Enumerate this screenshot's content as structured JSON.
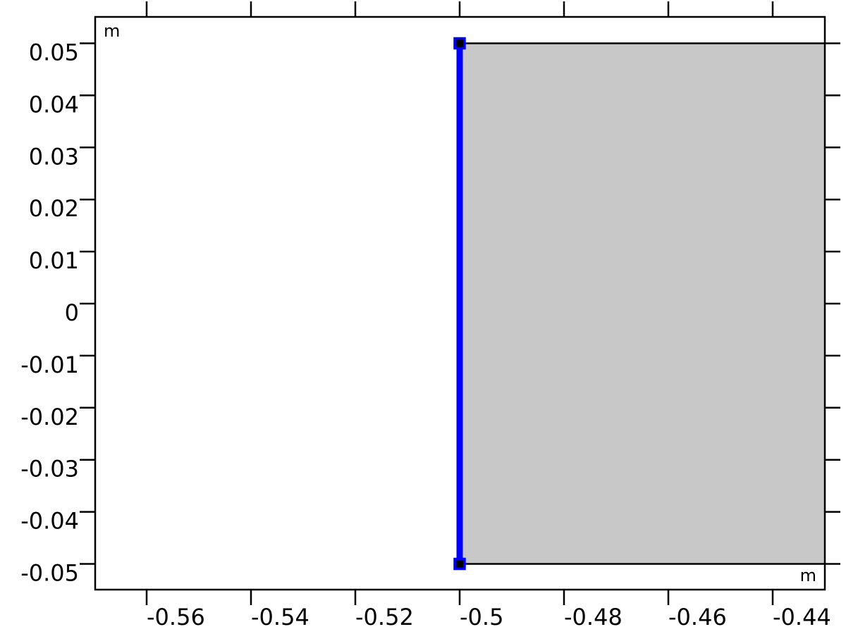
{
  "chart_data": {
    "type": "geometry",
    "x_unit": "m",
    "y_unit": "m",
    "xlim": [
      -0.57,
      -0.43
    ],
    "ylim": [
      -0.055,
      0.055
    ],
    "x_ticks": [
      {
        "value": -0.56,
        "label": "-0.56"
      },
      {
        "value": -0.54,
        "label": "-0.54"
      },
      {
        "value": -0.52,
        "label": "-0.52"
      },
      {
        "value": -0.5,
        "label": "-0.5"
      },
      {
        "value": -0.48,
        "label": "-0.48"
      },
      {
        "value": -0.46,
        "label": "-0.46"
      },
      {
        "value": -0.44,
        "label": "-0.44"
      }
    ],
    "y_ticks": [
      {
        "value": 0.05,
        "label": "0.05"
      },
      {
        "value": 0.04,
        "label": "0.04"
      },
      {
        "value": 0.03,
        "label": "0.03"
      },
      {
        "value": 0.02,
        "label": "0.02"
      },
      {
        "value": 0.01,
        "label": "0.01"
      },
      {
        "value": 0,
        "label": "0"
      },
      {
        "value": -0.01,
        "label": "-0.01"
      },
      {
        "value": -0.02,
        "label": "-0.02"
      },
      {
        "value": -0.03,
        "label": "-0.03"
      },
      {
        "value": -0.04,
        "label": "-0.04"
      },
      {
        "value": -0.05,
        "label": "-0.05"
      }
    ],
    "domain_rect": {
      "x_min": -0.5,
      "x_max": -0.43,
      "y_min": -0.05,
      "y_max": 0.05
    },
    "selected_edge": {
      "x": -0.5,
      "y_start": -0.05,
      "y_end": 0.05
    },
    "vertices": [
      {
        "x": -0.5,
        "y": 0.05
      },
      {
        "x": -0.5,
        "y": -0.05
      }
    ],
    "colors": {
      "domain_fill": "#c8c8c8",
      "selected_edge": "#0000ff",
      "vertex": "#000000",
      "axis": "#000000"
    }
  }
}
